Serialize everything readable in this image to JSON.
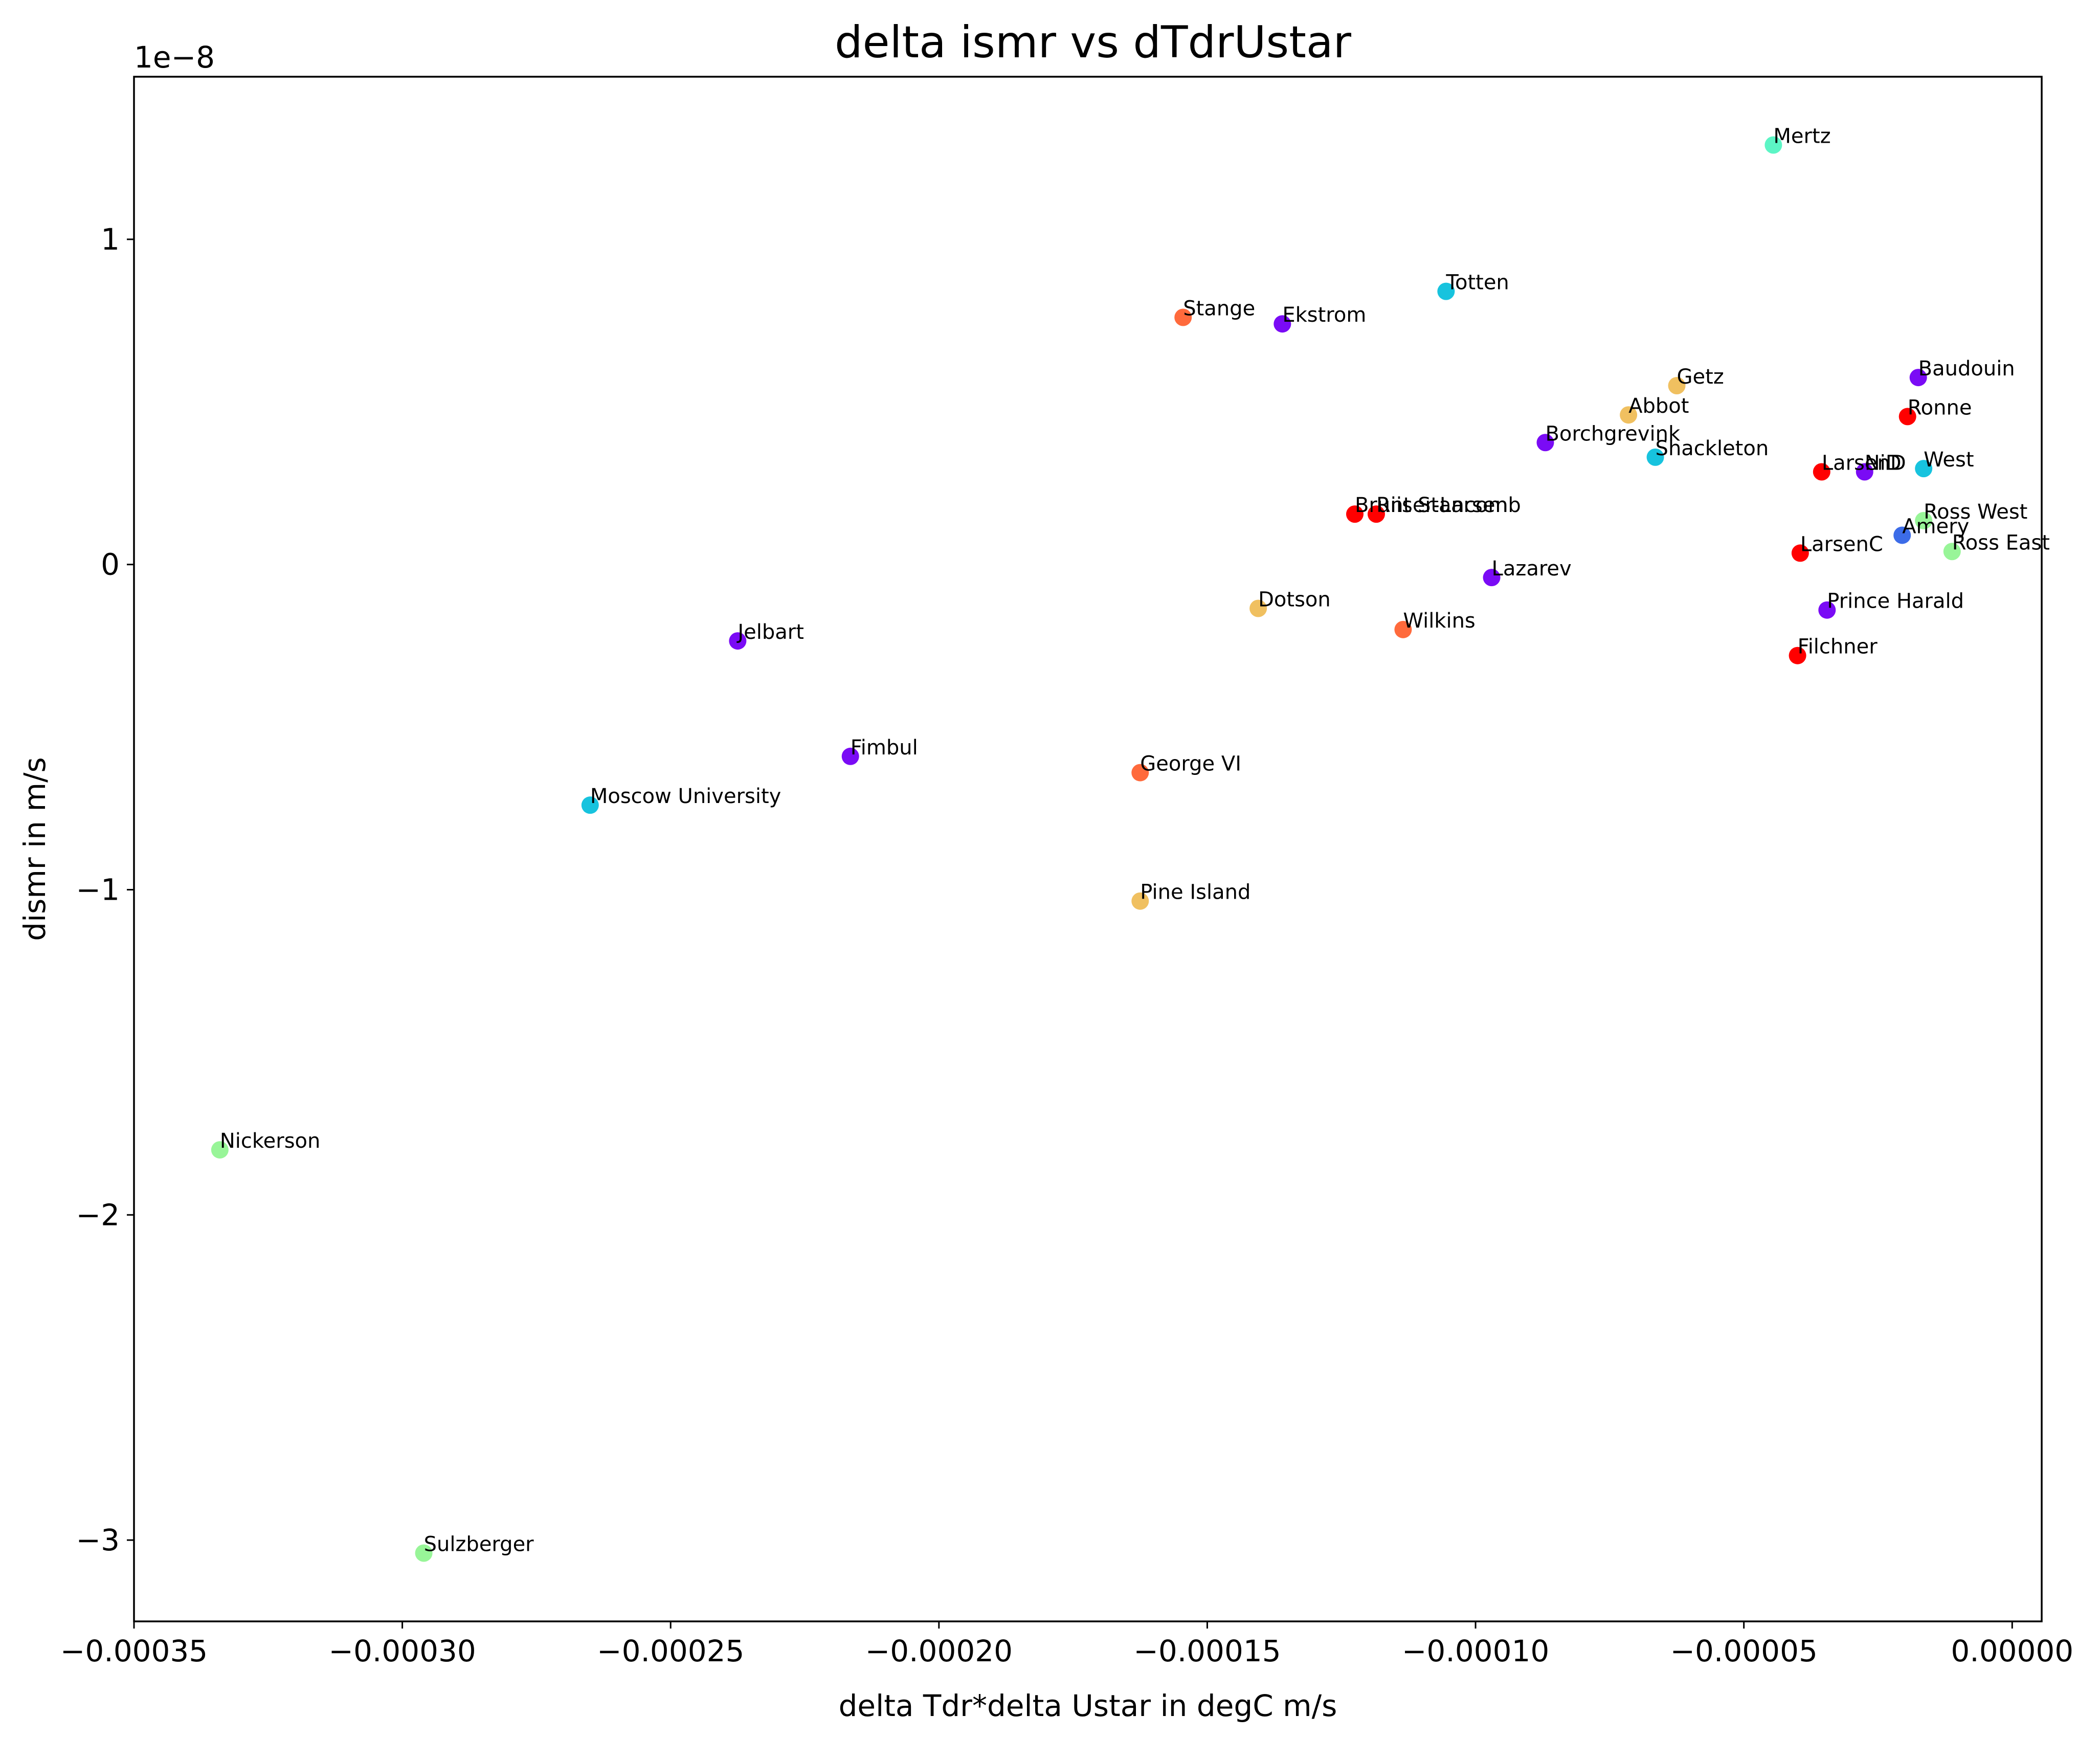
{
  "chart_data": {
    "type": "scatter",
    "title": "delta ismr vs dTdrUstar",
    "xlabel": "delta Tdr*delta Ustar in degC m/s",
    "ylabel": "dismr in m/s",
    "y_offset_text": "1e−8",
    "xlim": [
      -0.00035,
      5.5e-06
    ],
    "ylim": [
      -3.25,
      1.5
    ],
    "y_scale": 1e-08,
    "grid": false,
    "x_ticks": [
      {
        "value": -0.00035,
        "label": "−0.00035"
      },
      {
        "value": -0.0003,
        "label": "−0.00030"
      },
      {
        "value": -0.00025,
        "label": "−0.00025"
      },
      {
        "value": -0.0002,
        "label": "−0.00020"
      },
      {
        "value": -0.00015,
        "label": "−0.00015"
      },
      {
        "value": -0.0001,
        "label": "−0.00010"
      },
      {
        "value": -5e-05,
        "label": "−0.00005"
      },
      {
        "value": 0.0,
        "label": "0.00000"
      }
    ],
    "y_ticks": [
      {
        "value": 1,
        "label": "1"
      },
      {
        "value": 0,
        "label": "0"
      },
      {
        "value": -1,
        "label": "−1"
      },
      {
        "value": -2,
        "label": "−2"
      },
      {
        "value": -3,
        "label": "−3"
      }
    ],
    "points": [
      {
        "label": "Mertz",
        "x": -4.45e-05,
        "y": 1.29,
        "color": "#5cf5c5"
      },
      {
        "label": "Totten",
        "x": -0.0001055,
        "y": 0.84,
        "color": "#17c3de"
      },
      {
        "label": "Stange",
        "x": -0.0001545,
        "y": 0.76,
        "color": "#ff6a3c"
      },
      {
        "label": "Ekstrom",
        "x": -0.000136,
        "y": 0.74,
        "color": "#7a0bf5"
      },
      {
        "label": "Getz",
        "x": -6.25e-05,
        "y": 0.55,
        "color": "#f0c060"
      },
      {
        "label": "Baudouin",
        "x": -1.75e-05,
        "y": 0.575,
        "color": "#7a0bf5"
      },
      {
        "label": "Ronne",
        "x": -1.95e-05,
        "y": 0.455,
        "color": "#ff0000"
      },
      {
        "label": "Abbot",
        "x": -7.15e-05,
        "y": 0.46,
        "color": "#f0c060"
      },
      {
        "label": "Borchgrevink",
        "x": -8.7e-05,
        "y": 0.375,
        "color": "#7a0bf5"
      },
      {
        "label": "Shackleton",
        "x": -6.65e-05,
        "y": 0.33,
        "color": "#17c3de"
      },
      {
        "label": "LarsenD",
        "x": -3.55e-05,
        "y": 0.285,
        "color": "#ff0000"
      },
      {
        "label": "NiD",
        "x": -2.75e-05,
        "y": 0.285,
        "color": "#7a0bf5"
      },
      {
        "label": "West",
        "x": -1.65e-05,
        "y": 0.295,
        "color": "#17c3de"
      },
      {
        "label": "Brunt Stancomb",
        "x": -0.0001225,
        "y": 0.155,
        "color": "#ff0000"
      },
      {
        "label": "Riiser-Larsen",
        "x": -0.0001185,
        "y": 0.155,
        "color": "#ff0000"
      },
      {
        "label": "Ross West",
        "x": -1.65e-05,
        "y": 0.135,
        "color": "#98f598"
      },
      {
        "label": "Amery",
        "x": -2.05e-05,
        "y": 0.09,
        "color": "#3c6ce8"
      },
      {
        "label": "LarsenC",
        "x": -3.95e-05,
        "y": 0.035,
        "color": "#ff0000"
      },
      {
        "label": "Ross East",
        "x": -1.12e-05,
        "y": 0.04,
        "color": "#98f598"
      },
      {
        "label": "Lazarev",
        "x": -9.7e-05,
        "y": -0.04,
        "color": "#7a0bf5"
      },
      {
        "label": "Dotson",
        "x": -0.0001405,
        "y": -0.135,
        "color": "#f0c060"
      },
      {
        "label": "Prince Harald",
        "x": -3.45e-05,
        "y": -0.14,
        "color": "#7a0bf5"
      },
      {
        "label": "Wilkins",
        "x": -0.0001135,
        "y": -0.2,
        "color": "#ff6a3c"
      },
      {
        "label": "Filchner",
        "x": -4e-05,
        "y": -0.28,
        "color": "#ff0000"
      },
      {
        "label": "Jelbart",
        "x": -0.0002375,
        "y": -0.235,
        "color": "#7a0bf5"
      },
      {
        "label": "Fimbul",
        "x": -0.0002165,
        "y": -0.59,
        "color": "#7a0bf5"
      },
      {
        "label": "George VI",
        "x": -0.0001625,
        "y": -0.64,
        "color": "#ff6a3c"
      },
      {
        "label": "Moscow University",
        "x": -0.000265,
        "y": -0.74,
        "color": "#17c3de"
      },
      {
        "label": "Pine Island",
        "x": -0.0001625,
        "y": -1.035,
        "color": "#f0c060"
      },
      {
        "label": "Nickerson",
        "x": -0.000334,
        "y": -1.8,
        "color": "#98f598"
      },
      {
        "label": "Sulzberger",
        "x": -0.000296,
        "y": -3.04,
        "color": "#98f598"
      }
    ]
  }
}
